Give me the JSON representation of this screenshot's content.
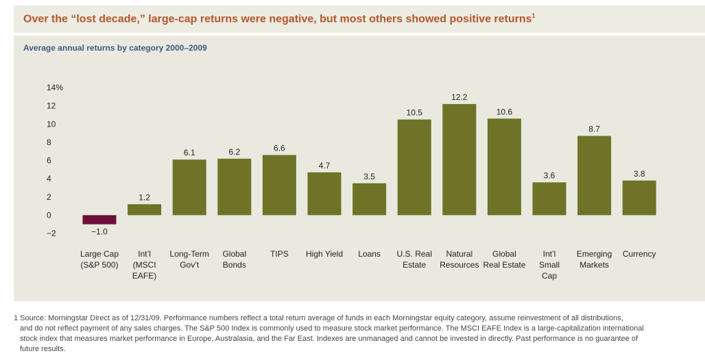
{
  "header": {
    "title": "Over the “lost decade,” large-cap returns were negative, but most others showed positive returns",
    "title_footnote_mark": "1"
  },
  "chart_data": {
    "type": "bar",
    "title": "Average annual returns by category 2000–2009",
    "xlabel": "",
    "ylabel": "",
    "ylim": [
      -2,
      14
    ],
    "yticks": [
      "14%",
      "12",
      "10",
      "8",
      "6",
      "4",
      "2",
      "0",
      "−2"
    ],
    "grid": false,
    "categories": [
      [
        "Large Cap",
        "(S&P 500)"
      ],
      [
        "Int’l",
        "(MSCI",
        "EAFE)"
      ],
      [
        "Long-Term",
        "Gov’t"
      ],
      [
        "Global",
        "Bonds"
      ],
      [
        "TIPS"
      ],
      [
        "High Yield"
      ],
      [
        "Loans"
      ],
      [
        "U.S. Real",
        "Estate"
      ],
      [
        "Natural",
        "Resources"
      ],
      [
        "Global",
        "Real Estate"
      ],
      [
        "Int’l",
        "Small",
        "Cap"
      ],
      [
        "Emerging",
        "Markets"
      ],
      [
        "Currency"
      ]
    ],
    "values": [
      -1.0,
      1.2,
      6.1,
      6.2,
      6.6,
      4.7,
      3.5,
      10.5,
      12.2,
      10.6,
      3.6,
      8.7,
      3.8
    ],
    "value_labels": [
      "−1.0",
      "1.2",
      "6.1",
      "6.2",
      "6.6",
      "4.7",
      "3.5",
      "10.5",
      "12.2",
      "10.6",
      "3.6",
      "8.7",
      "3.8"
    ],
    "colors": {
      "positive": "#6e7327",
      "negative": "#6e0f3b",
      "text": "#222222"
    }
  },
  "footnote": {
    "lines": [
      "1 Source: Morningstar Direct as of 12/31/09. Performance numbers reflect a total return average of funds in each Morningstar equity category, assume reinvestment of all distributions,",
      "and do not reflect payment of any sales charges. The S&P 500 Index is commonly used to measure stock market performance. The MSCI EAFE Index is a large-capitalization international",
      "stock index that measures market performance in Europe, Australasia, and the Far East. Indexes are unmanaged and cannot be invested in directly. Past performance is no guarantee of",
      "future results."
    ]
  }
}
